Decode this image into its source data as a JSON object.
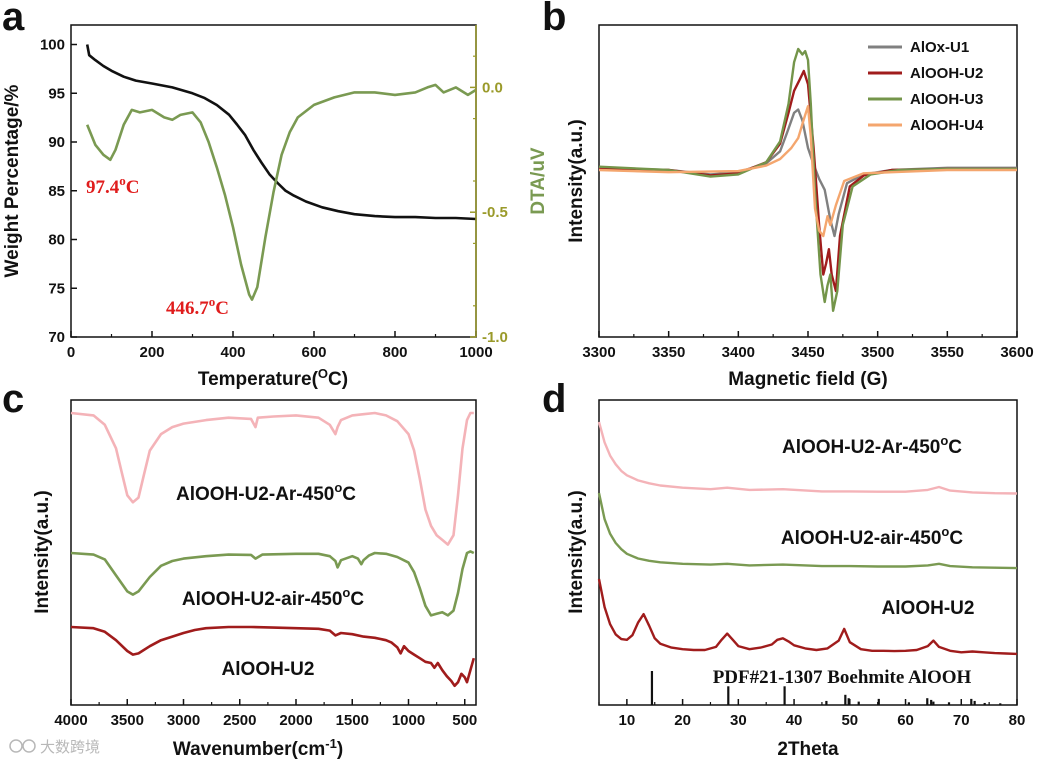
{
  "figure_labels": [
    "a",
    "b",
    "c",
    "d"
  ],
  "watermark": "大数跨境",
  "chart_data": [
    {
      "panel": "a",
      "type": "line",
      "xlabel": "Temperature(OC)",
      "xlabel_main": "Temperature(",
      "xlabel_sup": "O",
      "xlabel_end": "C)",
      "ylabel": "Weight Percentage/%",
      "y2label": "DTA/uV",
      "xlim": [
        0,
        1000
      ],
      "ylim": [
        70,
        102
      ],
      "y2lim": [
        -1.0,
        0.25
      ],
      "xticks": [
        "0",
        "200",
        "400",
        "600",
        "800",
        "1000"
      ],
      "yticks": [
        "70",
        "75",
        "80",
        "85",
        "90",
        "95",
        "100"
      ],
      "y2ticks": [
        "-1.0",
        "-0.5",
        "0.0"
      ],
      "annotations": [
        {
          "text": "97.4",
          "sup": "o",
          "unit": "C"
        },
        {
          "text": "446.7",
          "sup": "o",
          "unit": "C"
        }
      ],
      "series": [
        {
          "name": "Weight Percentage",
          "color": "#111111",
          "axis": "left",
          "x": [
            40,
            45,
            60,
            80,
            100,
            130,
            160,
            200,
            250,
            300,
            330,
            360,
            390,
            410,
            430,
            450,
            470,
            490,
            510,
            530,
            550,
            580,
            620,
            660,
            700,
            750,
            800,
            850,
            900,
            950,
            1000
          ],
          "y": [
            100.0,
            98.9,
            98.4,
            97.8,
            97.3,
            96.7,
            96.3,
            96.0,
            95.6,
            95.0,
            94.5,
            93.8,
            92.8,
            91.8,
            90.7,
            89.2,
            87.9,
            86.7,
            85.8,
            85.0,
            84.5,
            83.9,
            83.3,
            82.9,
            82.6,
            82.4,
            82.3,
            82.3,
            82.2,
            82.2,
            82.1
          ]
        },
        {
          "name": "DTA",
          "color": "#7a9a52",
          "axis": "right",
          "x": [
            40,
            60,
            80,
            97,
            110,
            130,
            150,
            170,
            200,
            230,
            250,
            270,
            300,
            320,
            340,
            360,
            380,
            400,
            420,
            440,
            447,
            460,
            480,
            500,
            520,
            540,
            560,
            600,
            650,
            700,
            750,
            800,
            850,
            880,
            900,
            920,
            950,
            980,
            1000
          ],
          "y": [
            -0.15,
            -0.23,
            -0.27,
            -0.29,
            -0.25,
            -0.15,
            -0.09,
            -0.1,
            -0.09,
            -0.12,
            -0.13,
            -0.11,
            -0.1,
            -0.14,
            -0.22,
            -0.32,
            -0.43,
            -0.56,
            -0.71,
            -0.83,
            -0.85,
            -0.8,
            -0.6,
            -0.42,
            -0.27,
            -0.18,
            -0.12,
            -0.07,
            -0.04,
            -0.02,
            -0.02,
            -0.03,
            -0.02,
            0.0,
            0.01,
            -0.02,
            0.0,
            -0.03,
            -0.01
          ]
        }
      ]
    },
    {
      "panel": "b",
      "type": "line",
      "xlabel": "Magnetic field (G)",
      "ylabel": "Intensity(a.u.)",
      "xlim": [
        3300,
        3600
      ],
      "xticks": [
        "3300",
        "3350",
        "3400",
        "3450",
        "3500",
        "3550",
        "3600"
      ],
      "legend_position": "top-right",
      "series": [
        {
          "name": "AlOx-U1",
          "color": "#808080",
          "x": [
            3300,
            3350,
            3380,
            3400,
            3420,
            3430,
            3435,
            3440,
            3443,
            3446,
            3450,
            3454,
            3458,
            3462,
            3466,
            3469,
            3472,
            3478,
            3490,
            3510,
            3550,
            3600
          ],
          "y": [
            0.02,
            0.0,
            -0.04,
            -0.02,
            0.06,
            0.17,
            0.34,
            0.52,
            0.55,
            0.45,
            0.2,
            0.05,
            -0.08,
            -0.18,
            -0.45,
            -0.6,
            -0.4,
            -0.12,
            -0.04,
            0.0,
            0.02,
            0.02
          ]
        },
        {
          "name": "AlOOH-U2",
          "color": "#a01c1c",
          "x": [
            3300,
            3350,
            3380,
            3400,
            3420,
            3430,
            3436,
            3440,
            3444,
            3447,
            3450,
            3454,
            3458,
            3461,
            3463,
            3465,
            3467,
            3470,
            3473,
            3480,
            3490,
            3510,
            3550,
            3600
          ],
          "y": [
            0.01,
            0.0,
            -0.05,
            -0.03,
            0.07,
            0.24,
            0.52,
            0.72,
            0.82,
            0.9,
            0.78,
            0.2,
            -0.5,
            -0.95,
            -0.85,
            -0.72,
            -0.95,
            -1.1,
            -0.6,
            -0.15,
            -0.05,
            0.0,
            0.01,
            0.01
          ]
        },
        {
          "name": "AlOOH-U3",
          "color": "#74954a",
          "x": [
            3300,
            3350,
            3380,
            3400,
            3420,
            3430,
            3436,
            3440,
            3443,
            3446,
            3448,
            3450,
            3452,
            3455,
            3459,
            3462,
            3464,
            3466,
            3468,
            3471,
            3475,
            3482,
            3495,
            3515,
            3550,
            3600
          ],
          "y": [
            0.03,
            0.0,
            -0.06,
            -0.04,
            0.07,
            0.26,
            0.6,
            0.98,
            1.1,
            1.05,
            1.08,
            1.0,
            0.6,
            -0.2,
            -0.95,
            -1.2,
            -1.05,
            -0.95,
            -1.28,
            -1.1,
            -0.5,
            -0.15,
            -0.04,
            0.0,
            0.01,
            0.01
          ]
        },
        {
          "name": "AlOOH-U4",
          "color": "#f4a66e",
          "x": [
            3300,
            3350,
            3400,
            3420,
            3430,
            3438,
            3443,
            3447,
            3450,
            3452,
            3455,
            3458,
            3461,
            3464,
            3466,
            3470,
            3476,
            3490,
            3550,
            3600
          ],
          "y": [
            0.0,
            -0.02,
            -0.01,
            0.04,
            0.1,
            0.2,
            0.29,
            0.46,
            0.58,
            0.3,
            -0.35,
            -0.55,
            -0.6,
            -0.42,
            -0.5,
            -0.32,
            -0.1,
            -0.03,
            0.0,
            0.0
          ]
        }
      ]
    },
    {
      "panel": "c",
      "type": "line",
      "xlabel": "Wavenumber(cm-1)",
      "xlabel_main": "Wavenumber(cm",
      "xlabel_sup": "-1",
      "xlabel_end": ")",
      "ylabel": "Intensity(a.u.)",
      "xlim": [
        4000,
        400
      ],
      "xticks": [
        "4000",
        "3500",
        "3000",
        "2500",
        "2000",
        "1500",
        "1000",
        "500"
      ],
      "series": [
        {
          "name": "AlOOH-U2-Ar-450",
          "label_main": "AlOOH-U2-Ar-450",
          "label_sup": "o",
          "label_end": "C",
          "color": "#f4b3b8",
          "x": [
            4000,
            3800,
            3700,
            3600,
            3550,
            3500,
            3450,
            3400,
            3350,
            3300,
            3200,
            3100,
            3000,
            2800,
            2600,
            2400,
            2360,
            2340,
            2200,
            2000,
            1800,
            1700,
            1650,
            1630,
            1600,
            1500,
            1400,
            1300,
            1200,
            1100,
            1000,
            950,
            900,
            850,
            800,
            750,
            700,
            650,
            600,
            560,
            520,
            480,
            450,
            420
          ],
          "y": [
            0.0,
            -0.1,
            -0.5,
            -1.5,
            -2.5,
            -3.5,
            -3.8,
            -3.6,
            -2.6,
            -1.6,
            -0.9,
            -0.6,
            -0.45,
            -0.3,
            -0.2,
            -0.25,
            -0.6,
            -0.2,
            -0.15,
            -0.1,
            -0.2,
            -0.5,
            -0.9,
            -0.6,
            -0.3,
            -0.1,
            -0.05,
            0.0,
            -0.1,
            -0.35,
            -0.9,
            -1.6,
            -2.8,
            -4.1,
            -4.8,
            -5.2,
            -5.4,
            -5.6,
            -5.2,
            -3.5,
            -1.5,
            -0.3,
            0.0,
            0.0
          ]
        },
        {
          "name": "AlOOH-U2-air-450",
          "label_main": "AlOOH-U2-air-450",
          "label_sup": "o",
          "label_end": "C",
          "color": "#7a9a52",
          "x": [
            4000,
            3800,
            3700,
            3600,
            3500,
            3450,
            3400,
            3300,
            3200,
            3100,
            3000,
            2800,
            2600,
            2400,
            2360,
            2300,
            2000,
            1800,
            1700,
            1650,
            1630,
            1600,
            1500,
            1450,
            1420,
            1400,
            1350,
            1300,
            1200,
            1100,
            1000,
            950,
            900,
            850,
            800,
            750,
            700,
            650,
            600,
            560,
            520,
            480,
            450,
            420
          ],
          "y": [
            0.0,
            -0.1,
            -0.4,
            -1.4,
            -2.4,
            -2.6,
            -2.4,
            -1.5,
            -0.8,
            -0.5,
            -0.35,
            -0.2,
            -0.1,
            -0.12,
            -0.35,
            -0.1,
            -0.05,
            -0.05,
            -0.2,
            -0.5,
            -0.9,
            -0.45,
            -0.2,
            -0.35,
            -0.7,
            -0.45,
            -0.15,
            0.0,
            -0.05,
            -0.25,
            -0.6,
            -1.2,
            -2.2,
            -3.3,
            -3.9,
            -3.8,
            -3.7,
            -3.9,
            -3.6,
            -2.5,
            -1.0,
            0.0,
            0.1,
            0.0
          ]
        },
        {
          "name": "AlOOH-U2",
          "label_main": "AlOOH-U2",
          "label_sup": "",
          "label_end": "",
          "color": "#a01c1c",
          "x": [
            4000,
            3800,
            3700,
            3600,
            3500,
            3450,
            3400,
            3300,
            3200,
            3100,
            3000,
            2900,
            2800,
            2600,
            2400,
            2200,
            2000,
            1800,
            1700,
            1650,
            1600,
            1500,
            1400,
            1300,
            1200,
            1150,
            1100,
            1070,
            1040,
            1000,
            950,
            900,
            850,
            800,
            770,
            740,
            700,
            660,
            620,
            590,
            560,
            530,
            500,
            480,
            450,
            420
          ],
          "y": [
            0.0,
            -0.1,
            -0.4,
            -1.1,
            -2.0,
            -2.3,
            -2.2,
            -1.6,
            -1.1,
            -0.8,
            -0.5,
            -0.25,
            -0.1,
            0.0,
            0.0,
            -0.05,
            -0.1,
            -0.15,
            -0.3,
            -0.7,
            -0.5,
            -0.6,
            -0.8,
            -0.9,
            -1.1,
            -1.3,
            -1.7,
            -2.2,
            -1.6,
            -2.0,
            -2.3,
            -2.6,
            -2.9,
            -3.0,
            -3.4,
            -3.0,
            -3.6,
            -4.1,
            -4.5,
            -4.9,
            -4.6,
            -3.9,
            -4.2,
            -4.6,
            -3.6,
            -2.6
          ]
        }
      ]
    },
    {
      "panel": "d",
      "type": "line",
      "xlabel": "2Theta",
      "ylabel": "Intensity(a.u.)",
      "xlim": [
        5,
        80
      ],
      "xticks": [
        "10",
        "20",
        "30",
        "40",
        "50",
        "60",
        "70",
        "80"
      ],
      "reference_label": "PDF#21-1307 Boehmite AlOOH",
      "series": [
        {
          "name": "AlOOH-U2-Ar-450",
          "label_main": "AlOOH-U2-Ar-450",
          "label_sup": "o",
          "label_end": "C",
          "color": "#f4b3b8",
          "x": [
            5,
            6,
            7,
            8,
            9,
            10,
            12,
            14,
            16,
            20,
            25,
            28,
            32,
            38,
            45,
            50,
            55,
            60,
            64,
            66,
            68,
            72,
            76,
            80
          ],
          "y": [
            10.0,
            7.2,
            5.4,
            4.2,
            3.3,
            2.7,
            2.0,
            1.6,
            1.3,
            1.0,
            0.8,
            1.0,
            0.7,
            0.8,
            0.5,
            0.5,
            0.45,
            0.45,
            0.7,
            1.1,
            0.6,
            0.35,
            0.25,
            0.2
          ]
        },
        {
          "name": "AlOOH-U2-air-450",
          "label_main": "AlOOH-U2-air-450",
          "label_sup": "o",
          "label_end": "C",
          "color": "#7a9a52",
          "x": [
            5,
            6,
            7,
            8,
            9,
            10,
            12,
            14,
            16,
            20,
            25,
            28,
            32,
            38,
            45,
            50,
            55,
            60,
            64,
            66,
            68,
            72,
            76,
            80
          ],
          "y": [
            10.0,
            6.6,
            4.7,
            3.5,
            2.7,
            2.1,
            1.5,
            1.2,
            1.0,
            0.8,
            0.7,
            0.8,
            0.6,
            0.7,
            0.5,
            0.5,
            0.45,
            0.45,
            0.6,
            0.8,
            0.5,
            0.35,
            0.3,
            0.25
          ]
        },
        {
          "name": "AlOOH-U2",
          "label_main": "AlOOH-U2",
          "label_sup": "",
          "label_end": "",
          "color": "#a01c1c",
          "x": [
            5,
            6,
            7,
            8,
            9,
            10,
            11,
            12,
            13,
            14,
            15,
            16,
            18,
            20,
            22,
            24,
            26,
            27,
            28,
            29,
            30,
            32,
            34,
            36,
            37,
            38,
            39,
            40,
            42,
            44,
            46,
            47,
            48,
            49,
            50,
            52,
            54,
            56,
            58,
            60,
            62,
            64,
            65,
            66,
            68,
            70,
            72,
            74,
            76,
            78,
            80
          ],
          "y": [
            10.0,
            6.4,
            4.2,
            2.9,
            2.3,
            2.2,
            2.8,
            4.4,
            5.5,
            4.0,
            2.4,
            1.7,
            1.2,
            1.0,
            0.9,
            0.9,
            1.3,
            2.2,
            3.0,
            2.2,
            1.4,
            1.0,
            1.2,
            1.6,
            2.2,
            2.4,
            2.0,
            1.5,
            1.1,
            0.9,
            1.1,
            1.6,
            2.1,
            3.6,
            1.9,
            1.0,
            0.8,
            0.8,
            0.75,
            0.8,
            0.9,
            1.4,
            2.1,
            1.3,
            0.8,
            0.6,
            0.7,
            0.6,
            0.5,
            0.45,
            0.4
          ]
        }
      ],
      "reference_peaks": {
        "x": [
          14.5,
          28.2,
          38.3,
          45.8,
          49.2,
          49.8,
          51.6,
          55.2,
          60.6,
          63.9,
          64.6,
          65.0,
          67.8,
          71.8,
          72.4,
          74.2,
          77.0
        ],
        "h": [
          1.0,
          0.55,
          0.55,
          0.12,
          0.3,
          0.2,
          0.1,
          0.18,
          0.08,
          0.2,
          0.15,
          0.1,
          0.08,
          0.18,
          0.12,
          0.06,
          0.05
        ]
      }
    }
  ]
}
